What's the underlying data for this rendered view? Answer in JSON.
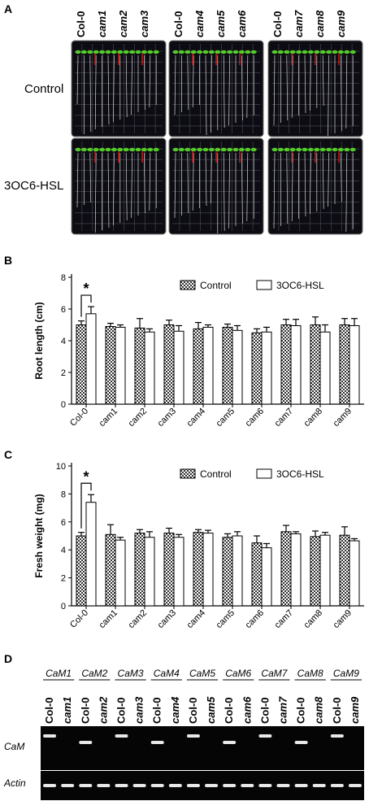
{
  "panel_a": {
    "letter": "A",
    "row_labels": [
      "Control",
      "3OC6-HSL"
    ],
    "plates": [
      {
        "lines": [
          "Col-0",
          "cam1",
          "cam2",
          "cam3"
        ]
      },
      {
        "lines": [
          "Col-0",
          "cam4",
          "cam5",
          "cam6"
        ]
      },
      {
        "lines": [
          "Col-0",
          "cam7",
          "cam8",
          "cam9"
        ]
      }
    ],
    "colors": {
      "plate": "#0c0c12",
      "grid": "#4a4f5c",
      "leaf": "#55cc2a",
      "marker": "#cc1a1a",
      "root": "#d8d8d8"
    }
  },
  "chart_data": [
    {
      "type": "bar",
      "panel": "B",
      "ylabel": "Root length (cm)",
      "ylim": [
        0,
        8
      ],
      "yticks": [
        0,
        2,
        4,
        6,
        8
      ],
      "categories": [
        "Col-0",
        "cam1",
        "cam2",
        "cam3",
        "cam4",
        "cam5",
        "cam6",
        "cam7",
        "cam8",
        "cam9"
      ],
      "series": [
        {
          "name": "Control",
          "values": [
            5.0,
            4.9,
            4.8,
            5.0,
            4.75,
            4.85,
            4.5,
            5.0,
            5.0,
            5.0
          ],
          "errors": [
            0.25,
            0.2,
            0.6,
            0.3,
            0.4,
            0.2,
            0.25,
            0.35,
            0.5,
            0.4
          ]
        },
        {
          "name": "3OC6-HSL",
          "values": [
            5.7,
            4.85,
            4.55,
            4.6,
            4.85,
            4.65,
            4.55,
            4.95,
            4.55,
            4.95
          ],
          "errors": [
            0.45,
            0.15,
            0.2,
            0.35,
            0.15,
            0.3,
            0.3,
            0.4,
            0.45,
            0.45
          ]
        }
      ],
      "significance": {
        "category": "Col-0",
        "label": "*"
      },
      "legend": "top-right",
      "grid": false
    },
    {
      "type": "bar",
      "panel": "C",
      "ylabel": "Fresh weight (mg)",
      "ylim": [
        0,
        10
      ],
      "yticks": [
        0,
        2,
        4,
        6,
        8,
        10
      ],
      "categories": [
        "Col-0",
        "cam1",
        "cam2",
        "cam3",
        "cam4",
        "cam5",
        "cam6",
        "cam7",
        "cam8",
        "cam9"
      ],
      "series": [
        {
          "name": "Control",
          "values": [
            5.0,
            5.1,
            5.2,
            5.2,
            5.25,
            4.9,
            4.5,
            5.3,
            4.95,
            5.05
          ],
          "errors": [
            0.25,
            0.7,
            0.25,
            0.35,
            0.2,
            0.25,
            0.5,
            0.45,
            0.4,
            0.6
          ]
        },
        {
          "name": "3OC6-HSL",
          "values": [
            7.4,
            4.7,
            4.9,
            4.9,
            5.2,
            5.0,
            4.15,
            5.15,
            5.05,
            4.65
          ],
          "errors": [
            0.55,
            0.2,
            0.4,
            0.2,
            0.2,
            0.3,
            0.3,
            0.15,
            0.2,
            0.15
          ]
        }
      ],
      "significance": {
        "category": "Col-0",
        "label": "*"
      },
      "legend": "top-right",
      "grid": false
    }
  ],
  "panel_b": {
    "letter": "B"
  },
  "panel_c": {
    "letter": "C"
  },
  "panel_d": {
    "letter": "D",
    "genes": [
      "CaM1",
      "CaM2",
      "CaM3",
      "CaM4",
      "CaM5",
      "CaM6",
      "CaM7",
      "CaM8",
      "CaM9"
    ],
    "lanes": [
      "Col-0",
      "cam1",
      "Col-0",
      "cam2",
      "Col-0",
      "cam3",
      "Col-0",
      "cam4",
      "Col-0",
      "cam5",
      "Col-0",
      "cam6",
      "Col-0",
      "cam7",
      "Col-0",
      "cam8",
      "Col-0",
      "cam9"
    ],
    "row_labels": [
      "CaM",
      "Actin"
    ],
    "cam_bands": [
      1,
      0,
      1,
      0,
      1,
      0,
      1,
      0,
      1,
      0,
      1,
      0,
      1,
      0,
      1,
      0,
      1,
      0
    ],
    "actin_bands": [
      1,
      1,
      1,
      1,
      1,
      1,
      1,
      1,
      1,
      1,
      1,
      1,
      1,
      1,
      1,
      1,
      1,
      1
    ]
  }
}
